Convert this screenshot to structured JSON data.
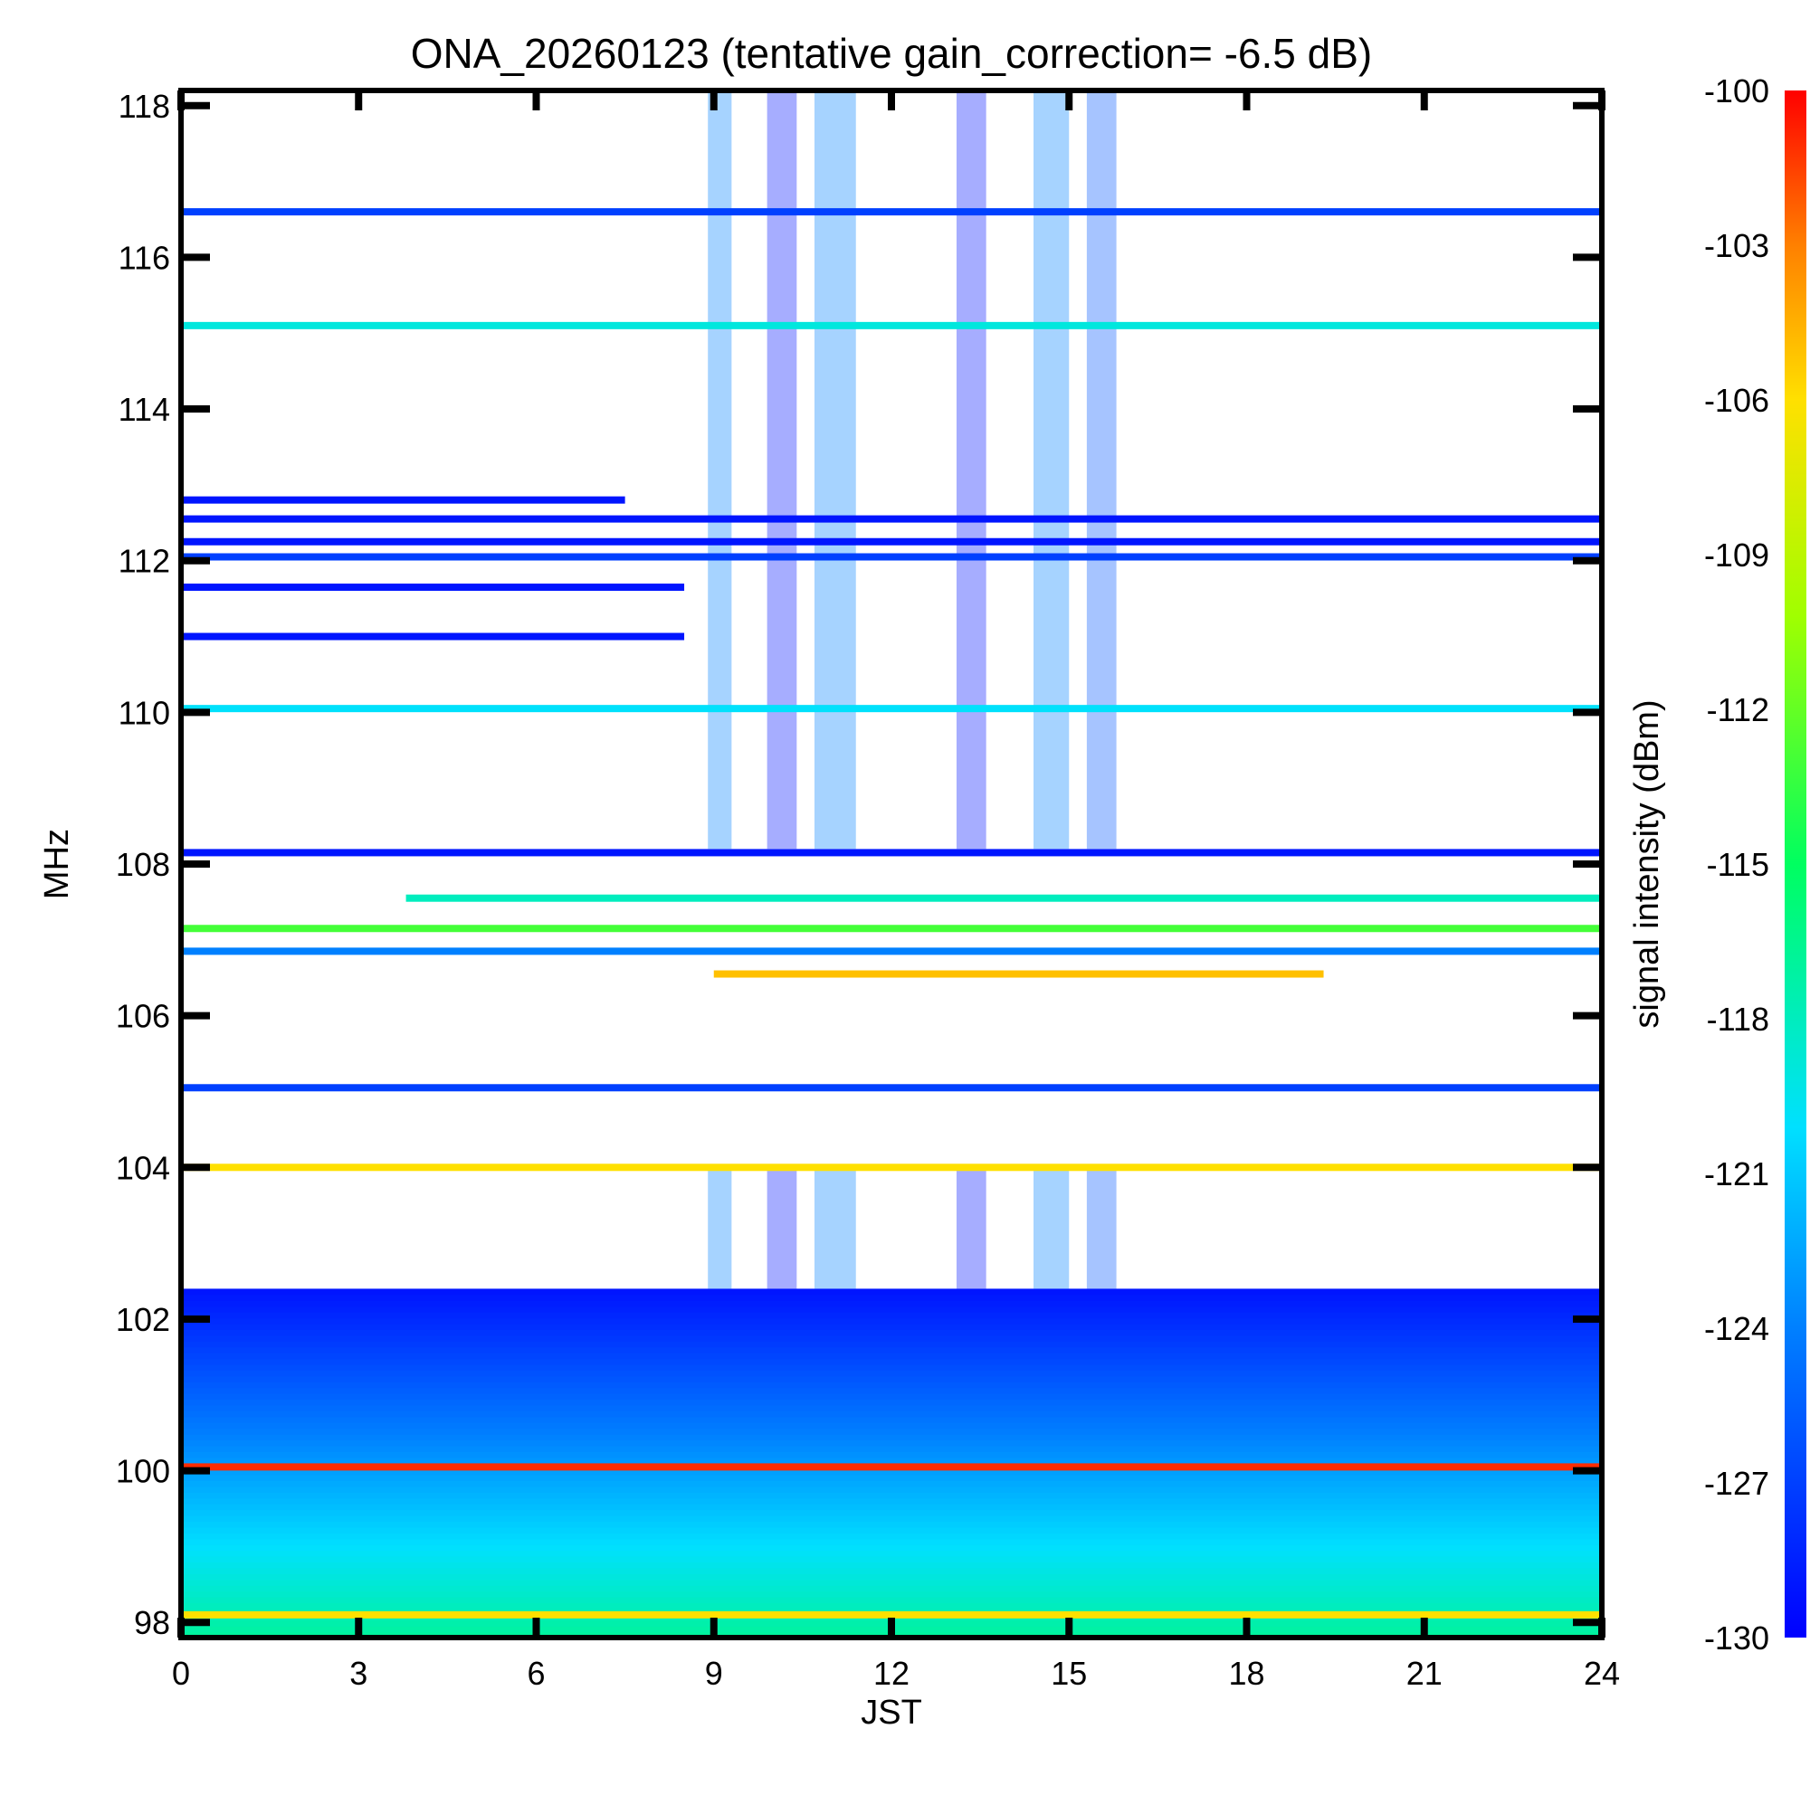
{
  "chart_data": {
    "type": "heatmap",
    "title": "ONA_20260123 (tentative gain_correction= -6.5 dB)",
    "xlabel": "JST",
    "ylabel": "MHz",
    "colorbar_label": "signal intensity (dBm)",
    "xlim": [
      0,
      24
    ],
    "ylim": [
      97.8,
      118.2
    ],
    "x_ticks": [
      0,
      3,
      6,
      9,
      12,
      15,
      18,
      21,
      24
    ],
    "x_tick_labels": [
      "0",
      "3",
      "6",
      "9",
      "12",
      "15",
      "18",
      "21",
      "24"
    ],
    "y_ticks": [
      98,
      100,
      102,
      104,
      106,
      108,
      110,
      112,
      114,
      116,
      118
    ],
    "y_tick_labels": [
      "98",
      "100",
      "102",
      "104",
      "106",
      "108",
      "110",
      "112",
      "114",
      "116",
      "118"
    ],
    "color_range": [
      -130,
      -100
    ],
    "colorbar_ticks": [
      -100,
      -103,
      -106,
      -109,
      -112,
      -115,
      -118,
      -121,
      -124,
      -127,
      -130
    ],
    "colorbar_tick_labels": [
      "-100",
      "-103",
      "-106",
      "-109",
      "-112",
      "-115",
      "-118",
      "-121",
      "-124",
      "-127",
      "-130"
    ],
    "colormap": "rainbow (blue to red)",
    "horizontal_bands": [
      {
        "freq_mhz": 116.6,
        "x_range": [
          0,
          24
        ],
        "dbm": -127
      },
      {
        "freq_mhz": 115.1,
        "x_range": [
          0,
          24
        ],
        "dbm": -119
      },
      {
        "freq_mhz": 112.8,
        "x_range": [
          0,
          7.5
        ],
        "dbm": -129
      },
      {
        "freq_mhz": 112.55,
        "x_range": [
          0,
          24
        ],
        "dbm": -129
      },
      {
        "freq_mhz": 112.25,
        "x_range": [
          0,
          24
        ],
        "dbm": -129
      },
      {
        "freq_mhz": 112.05,
        "x_range": [
          0,
          24
        ],
        "dbm": -127
      },
      {
        "freq_mhz": 111.65,
        "x_range": [
          0,
          8.5
        ],
        "dbm": -129
      },
      {
        "freq_mhz": 111.0,
        "x_range": [
          0,
          8.5
        ],
        "dbm": -129
      },
      {
        "freq_mhz": 110.05,
        "x_range": [
          0,
          24
        ],
        "dbm": -120
      },
      {
        "freq_mhz": 108.15,
        "x_range": [
          0,
          24
        ],
        "dbm": -129
      },
      {
        "freq_mhz": 107.55,
        "x_range": [
          3.8,
          24
        ],
        "dbm": -118
      },
      {
        "freq_mhz": 107.15,
        "x_range": [
          0,
          24
        ],
        "dbm": -113
      },
      {
        "freq_mhz": 106.85,
        "x_range": [
          0,
          24
        ],
        "dbm": -124
      },
      {
        "freq_mhz": 106.55,
        "x_range": [
          9,
          19.3
        ],
        "dbm": -105
      },
      {
        "freq_mhz": 105.05,
        "x_range": [
          0,
          24
        ],
        "dbm": -127
      },
      {
        "freq_mhz": 104.0,
        "x_range": [
          0,
          24
        ],
        "dbm": -106
      },
      {
        "freq_mhz": 100.05,
        "x_range": [
          0,
          24
        ],
        "dbm": -101
      },
      {
        "freq_mhz": 98.1,
        "x_range": [
          0,
          24
        ],
        "dbm": -106
      }
    ],
    "noise_floor_region": {
      "freq_range_mhz": [
        97.8,
        102.4
      ],
      "dbm_top": -129,
      "dbm_bottom": -117
    },
    "vertical_bands_jst": [
      {
        "x_range": [
          8.9,
          9.3
        ],
        "dbm": -124
      },
      {
        "x_range": [
          9.9,
          10.4
        ],
        "dbm": -129
      },
      {
        "x_range": [
          10.7,
          11.4
        ],
        "dbm": -124
      },
      {
        "x_range": [
          13.1,
          13.6
        ],
        "dbm": -129
      },
      {
        "x_range": [
          14.4,
          15.0
        ],
        "dbm": -124
      },
      {
        "x_range": [
          15.3,
          15.8
        ],
        "dbm": -126
      }
    ],
    "grid": false,
    "legend": "colorbar-right"
  }
}
